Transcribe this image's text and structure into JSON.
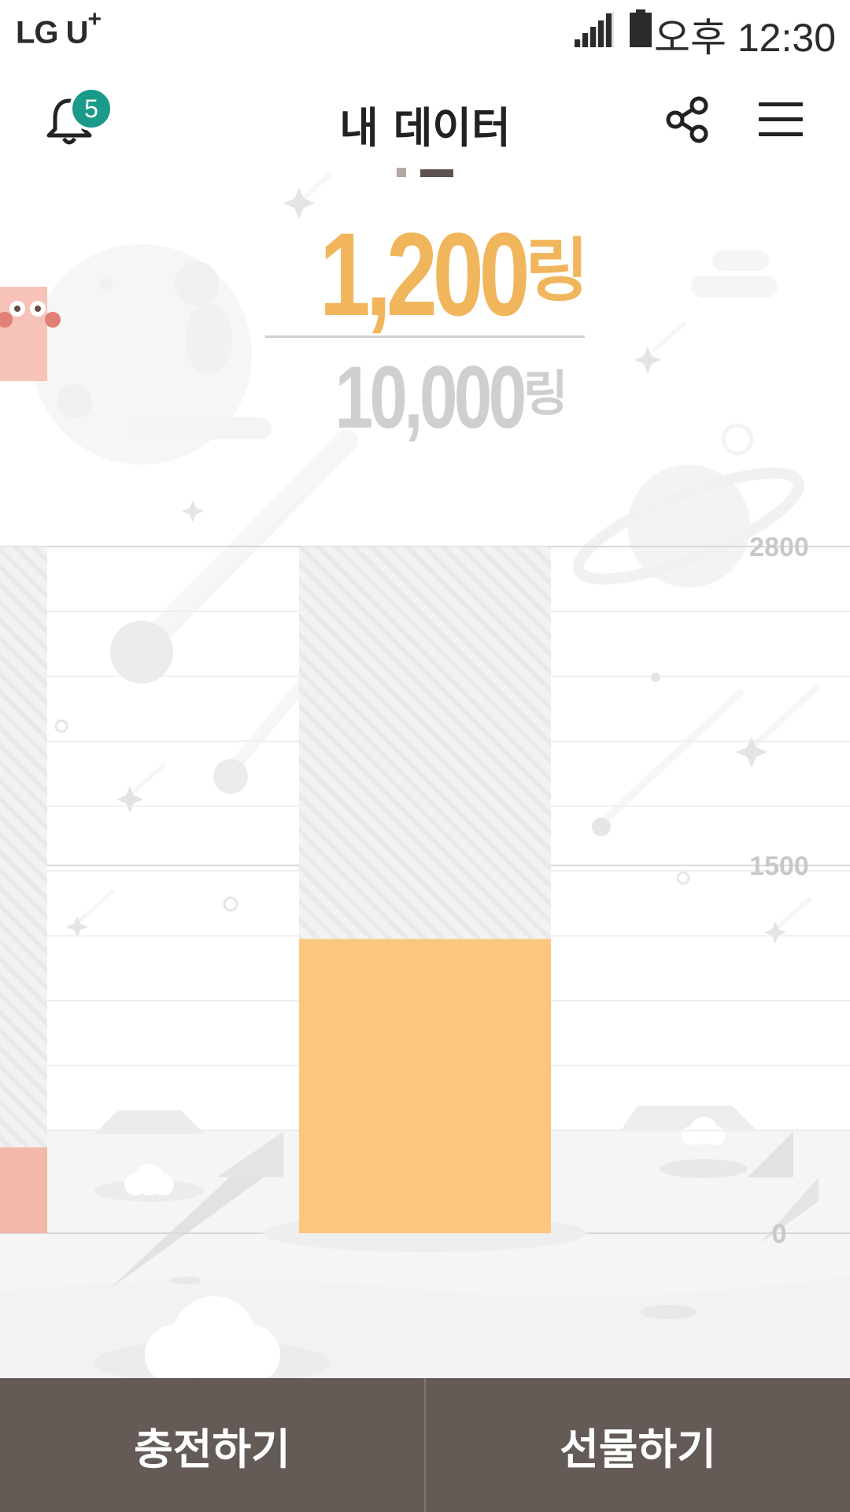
{
  "status_bar": {
    "carrier": "LG U",
    "carrier_plus": "+",
    "time": "오후 12:30"
  },
  "header": {
    "title": "내 데이터",
    "notification_count": "5",
    "page_indicator": {
      "pages": 2,
      "current": 2
    }
  },
  "balance": {
    "current_amount": "1,200",
    "current_unit": "링",
    "total_amount": "10,000",
    "total_unit": "링"
  },
  "chart_data": {
    "type": "bar",
    "categories": [
      "",
      ""
    ],
    "values": [
      350,
      1200
    ],
    "max_value": 2800,
    "y_ticks": [
      "2800",
      "1500",
      "0"
    ],
    "ylim": [
      0,
      2800
    ],
    "bar_color": "#fbc77f",
    "side_bar_color": "#f3b8aa"
  },
  "actions": {
    "charge_label": "충전하기",
    "gift_label": "선물하기"
  },
  "colors": {
    "accent": "#f1b65b",
    "bottom_bar": "#645b57",
    "badge": "#1a9a88"
  }
}
